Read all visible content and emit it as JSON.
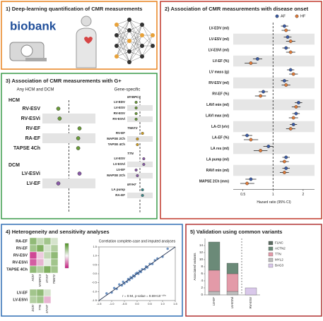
{
  "panel1": {
    "title": "1) Deep-learning quantification of CMR measurements",
    "logo": "biobank"
  },
  "panel2": {
    "title": "2) Association of CMR measurements with disease onset",
    "chart_data": {
      "type": "forest",
      "categories": [
        "LV-EDV (ml)",
        "LV-ESV (ml)",
        "LV-ESVi (ml)",
        "LV-EF (%)",
        "LV mass (g)",
        "RV-ESV (ml)",
        "RV-EF (%)",
        "LAVI min (ml)",
        "LAVI max (ml)",
        "LA-CI (v/v)",
        "LA-EF (%)",
        "LA res (ml)",
        "LA pump (ml)",
        "RAVI min (ml)",
        "MAPSE 2Ch (mm)"
      ],
      "series": [
        {
          "name": "AF",
          "color": "#3b5ba5",
          "values": [
            1.3,
            1.4,
            1.35,
            0.7,
            1.5,
            1.3,
            0.8,
            1.8,
            1.7,
            1.6,
            0.55,
            0.9,
            1.35,
            1.35,
            0.6
          ],
          "low": [
            1.2,
            1.28,
            1.24,
            0.63,
            1.38,
            1.2,
            0.72,
            1.65,
            1.56,
            1.47,
            0.49,
            0.8,
            1.24,
            1.24,
            0.53
          ],
          "high": [
            1.42,
            1.53,
            1.47,
            0.78,
            1.63,
            1.42,
            0.89,
            1.96,
            1.85,
            1.74,
            0.62,
            1.01,
            1.47,
            1.47,
            0.68
          ]
        },
        {
          "name": "HF",
          "color": "#e07b39",
          "values": [
            1.35,
            1.5,
            1.5,
            0.6,
            1.6,
            1.35,
            0.75,
            1.7,
            1.6,
            1.5,
            0.6,
            0.75,
            1.3,
            1.3,
            0.55
          ],
          "low": [
            1.22,
            1.35,
            1.35,
            0.52,
            1.45,
            1.22,
            0.66,
            1.54,
            1.44,
            1.35,
            0.51,
            0.64,
            1.17,
            1.17,
            0.47
          ],
          "high": [
            1.49,
            1.67,
            1.67,
            0.69,
            1.77,
            1.49,
            0.85,
            1.88,
            1.78,
            1.67,
            0.71,
            0.88,
            1.44,
            1.44,
            0.65
          ]
        }
      ],
      "xlabel": "Hazard ratio (95% CI)",
      "xlim": [
        0.4,
        2.6
      ],
      "xticks": [
        0.5,
        1,
        2
      ],
      "log_x": true,
      "reference": 1,
      "stripes": true
    }
  },
  "panel3": {
    "title": "3) Association of CMR measurements with G+",
    "left": {
      "title": "Any HCM and DCM",
      "xlim": [
        -1,
        1
      ],
      "reference": 0,
      "groups": [
        {
          "name": "HCM",
          "color": "#6a9a3a",
          "categories": [
            "RV-ESV",
            "RV-ESVi",
            "RV-EF",
            "RA-EF",
            "TAPSE 4Ch"
          ],
          "values": [
            -0.4,
            -0.35,
            0.4,
            0.35,
            0.35
          ]
        },
        {
          "name": "DCM",
          "color": "#8a5aa8",
          "categories": [
            "LV-ESVi",
            "LV-EF"
          ],
          "values": [
            0.4,
            -0.4
          ]
        }
      ]
    },
    "right": {
      "title": "Gene-specific",
      "xlim": [
        -1,
        1
      ],
      "reference": 0,
      "groups": [
        {
          "name": "MYBPC3",
          "color": "#6a9a3a",
          "categories": [
            "LV-EDV",
            "LV-ESV",
            "RV-ESV",
            "RV-ESVi"
          ],
          "values": [
            -0.3,
            -0.3,
            -0.3,
            -0.3
          ]
        },
        {
          "name": "TNNT2",
          "color": "#d4a020",
          "categories": [
            "RV-EF",
            "MAPSE 2Ch",
            "TAPSE 4Ch"
          ],
          "values": [
            0.2,
            -0.2,
            -0.2
          ]
        },
        {
          "name": "TTN",
          "color": "#8a5aa8",
          "categories": [
            "LV-ESV",
            "LV-ESVi",
            "LV-EF",
            "MAPSE 2Ch"
          ],
          "values": [
            0.3,
            0.3,
            -0.3,
            -0.2
          ]
        },
        {
          "name": "MYH7",
          "color": "#3b8a8a",
          "categories": [
            "LA pump",
            "RA-EF"
          ],
          "values": [
            0.2,
            0.2
          ]
        }
      ]
    }
  },
  "panel4": {
    "title": "4) Heterogeneity and sensitivity analyses",
    "heatmaps": [
      {
        "rows": [
          "RA-EF",
          "RV-EF",
          "RV-ESV",
          "RV-ESVi",
          "TAPSE 4Ch"
        ],
        "columns": [
          "HCM",
          "MYBPC3",
          "MYH7",
          "TNNT2"
        ],
        "values": [
          [
            0.6,
            0.3,
            0.5,
            0.2
          ],
          [
            0.5,
            0.7,
            0.2,
            0.4
          ],
          [
            -0.8,
            -0.2,
            0.3,
            0.6
          ],
          [
            -0.7,
            -0.3,
            0.1,
            0.5
          ],
          [
            0.6,
            0.4,
            0.7,
            0.5
          ]
        ]
      },
      {
        "rows": [
          "LV-EF",
          "LV-ESVi"
        ],
        "columns": [
          "DCM",
          "TTN",
          "MYH7"
        ],
        "values": [
          [
            0.5,
            0.6,
            0.2
          ],
          [
            0.4,
            0.5,
            -0.3
          ]
        ]
      }
    ],
    "vlim": [
      -1,
      1
    ],
    "scatter": {
      "type": "scatter",
      "title": "Correlation complete-case and imputed analyses",
      "annotation": "r = 0.94, p-value = 9.69×10⁻¹⁰⁵",
      "color": "#3d6fae",
      "x": [
        -1.2,
        -1.0,
        -0.9,
        -0.8,
        -0.7,
        -0.6,
        -0.55,
        -0.5,
        -0.4,
        -0.35,
        -0.3,
        -0.25,
        -0.2,
        -0.15,
        -0.1,
        -0.05,
        0.0,
        0.05,
        0.1,
        0.15,
        0.2,
        0.3,
        0.35,
        0.4,
        0.5,
        0.6,
        0.7,
        0.8,
        1.0,
        1.2
      ],
      "y": [
        -1.1,
        -1.05,
        -0.8,
        -0.85,
        -0.6,
        -0.65,
        -0.45,
        -0.55,
        -0.45,
        -0.3,
        -0.35,
        -0.2,
        -0.25,
        -0.1,
        -0.15,
        0.0,
        0.05,
        0.0,
        0.15,
        0.1,
        0.25,
        0.25,
        0.4,
        0.35,
        0.55,
        0.55,
        0.75,
        0.85,
        0.95,
        1.4
      ],
      "xlim": [
        -1.5,
        1.5
      ],
      "ylim": [
        -1.5,
        1.5
      ],
      "xticks": [
        -1.5,
        {
          "value": -1,
          "label": "-1.0"
        },
        -0.5,
        {
          "value": 0,
          "label": "0.0"
        },
        0.5,
        {
          "value": 1,
          "label": "1.0"
        },
        1.5
      ],
      "yticks": [
        -1.5,
        {
          "value": -1,
          "label": "-1.0"
        },
        -0.5,
        {
          "value": 0,
          "label": "0.0"
        },
        0.5,
        {
          "value": 1,
          "label": "1.0"
        },
        1.5
      ]
    }
  },
  "panel5": {
    "title": "5) Validation using common variants",
    "chart_data": {
      "type": "stacked_bar",
      "ylabel": "Associated variants",
      "categories": [
        "LV-EF",
        "LV-ESVi",
        "RV-ESV"
      ],
      "series": [
        {
          "name": "FLNC",
          "color": "#5a6a60",
          "values": [
            0,
            0,
            0
          ]
        },
        {
          "name": "ACTN2",
          "color": "#6b8a78",
          "values": [
            8,
            3,
            0
          ]
        },
        {
          "name": "TTN",
          "color": "#e39aa8",
          "values": [
            6,
            5,
            0
          ]
        },
        {
          "name": "MYL2",
          "color": "#bdbdbd",
          "values": [
            1,
            1,
            0
          ]
        },
        {
          "name": "BAG3",
          "color": "#d9c8ea",
          "values": [
            0,
            0,
            2
          ]
        }
      ],
      "ylim": [
        0,
        16
      ],
      "yticks": [
        0,
        2,
        4,
        6,
        8,
        10,
        12,
        14
      ]
    }
  }
}
